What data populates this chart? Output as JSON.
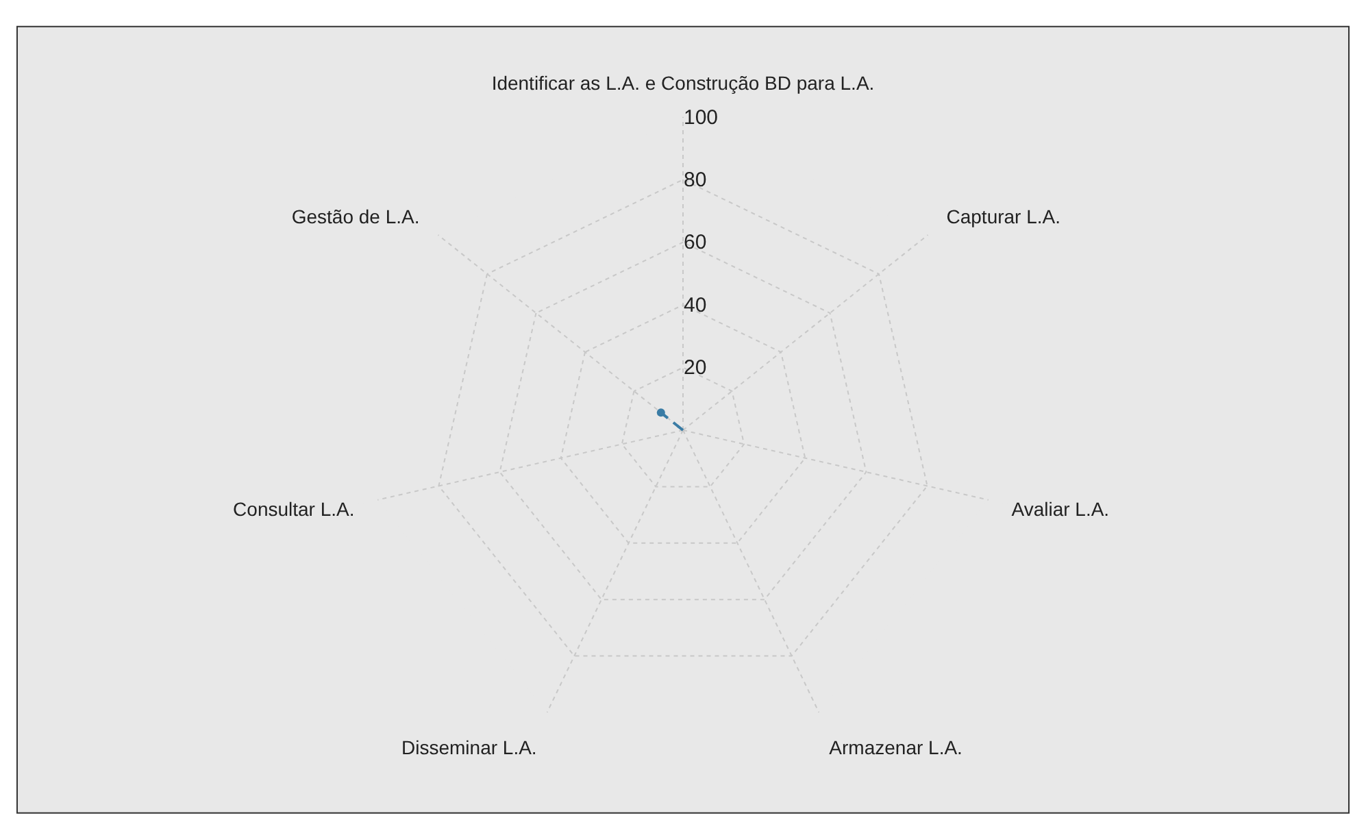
{
  "chart_data": {
    "type": "radar",
    "categories": [
      "Identificar as L.A. e Construção BD para L.A.",
      "Capturar L.A.",
      "Avaliar L.A.",
      "Armazenar L.A.",
      "Disseminar L.A.",
      "Consultar L.A.",
      "Gestão de L.A."
    ],
    "series": [
      {
        "color": "#3a7ca5",
        "values": [
          0,
          0,
          0,
          0,
          0,
          0,
          9
        ]
      }
    ],
    "ylim": [
      0,
      100
    ],
    "yticks": [
      20,
      40,
      60,
      80,
      100
    ],
    "grid": true,
    "marker": "circle",
    "line_style": "dashed"
  }
}
